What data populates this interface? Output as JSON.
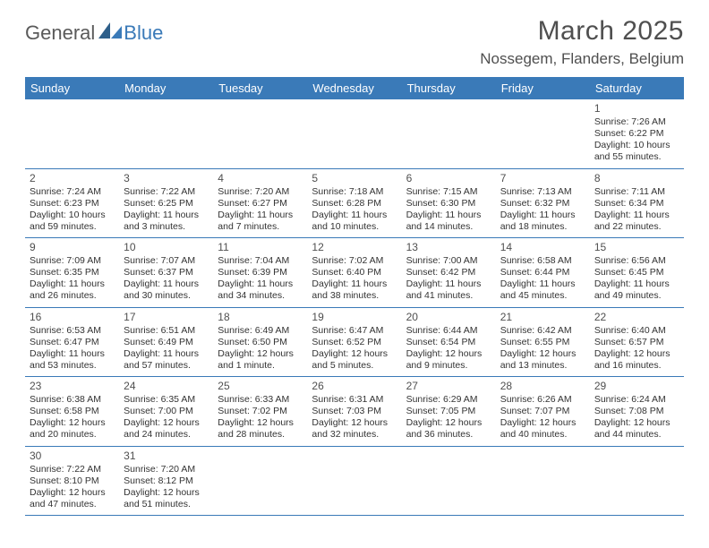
{
  "logo": {
    "general": "General",
    "blue": "Blue"
  },
  "title": "March 2025",
  "location": "Nossegem, Flanders, Belgium",
  "colors": {
    "header_bg": "#3a7ab8",
    "header_text": "#ffffff",
    "text": "#333333",
    "muted": "#4f4f4f",
    "rule": "#3a7ab8"
  },
  "typography": {
    "title_fontsize": 30,
    "location_fontsize": 17,
    "dow_fontsize": 13,
    "daynum_fontsize": 12,
    "body_fontsize": 10.5
  },
  "days_of_week": [
    "Sunday",
    "Monday",
    "Tuesday",
    "Wednesday",
    "Thursday",
    "Friday",
    "Saturday"
  ],
  "weeks": [
    [
      null,
      null,
      null,
      null,
      null,
      null,
      {
        "n": "1",
        "sunrise": "Sunrise: 7:26 AM",
        "sunset": "Sunset: 6:22 PM",
        "daylight": "Daylight: 10 hours and 55 minutes."
      }
    ],
    [
      {
        "n": "2",
        "sunrise": "Sunrise: 7:24 AM",
        "sunset": "Sunset: 6:23 PM",
        "daylight": "Daylight: 10 hours and 59 minutes."
      },
      {
        "n": "3",
        "sunrise": "Sunrise: 7:22 AM",
        "sunset": "Sunset: 6:25 PM",
        "daylight": "Daylight: 11 hours and 3 minutes."
      },
      {
        "n": "4",
        "sunrise": "Sunrise: 7:20 AM",
        "sunset": "Sunset: 6:27 PM",
        "daylight": "Daylight: 11 hours and 7 minutes."
      },
      {
        "n": "5",
        "sunrise": "Sunrise: 7:18 AM",
        "sunset": "Sunset: 6:28 PM",
        "daylight": "Daylight: 11 hours and 10 minutes."
      },
      {
        "n": "6",
        "sunrise": "Sunrise: 7:15 AM",
        "sunset": "Sunset: 6:30 PM",
        "daylight": "Daylight: 11 hours and 14 minutes."
      },
      {
        "n": "7",
        "sunrise": "Sunrise: 7:13 AM",
        "sunset": "Sunset: 6:32 PM",
        "daylight": "Daylight: 11 hours and 18 minutes."
      },
      {
        "n": "8",
        "sunrise": "Sunrise: 7:11 AM",
        "sunset": "Sunset: 6:34 PM",
        "daylight": "Daylight: 11 hours and 22 minutes."
      }
    ],
    [
      {
        "n": "9",
        "sunrise": "Sunrise: 7:09 AM",
        "sunset": "Sunset: 6:35 PM",
        "daylight": "Daylight: 11 hours and 26 minutes."
      },
      {
        "n": "10",
        "sunrise": "Sunrise: 7:07 AM",
        "sunset": "Sunset: 6:37 PM",
        "daylight": "Daylight: 11 hours and 30 minutes."
      },
      {
        "n": "11",
        "sunrise": "Sunrise: 7:04 AM",
        "sunset": "Sunset: 6:39 PM",
        "daylight": "Daylight: 11 hours and 34 minutes."
      },
      {
        "n": "12",
        "sunrise": "Sunrise: 7:02 AM",
        "sunset": "Sunset: 6:40 PM",
        "daylight": "Daylight: 11 hours and 38 minutes."
      },
      {
        "n": "13",
        "sunrise": "Sunrise: 7:00 AM",
        "sunset": "Sunset: 6:42 PM",
        "daylight": "Daylight: 11 hours and 41 minutes."
      },
      {
        "n": "14",
        "sunrise": "Sunrise: 6:58 AM",
        "sunset": "Sunset: 6:44 PM",
        "daylight": "Daylight: 11 hours and 45 minutes."
      },
      {
        "n": "15",
        "sunrise": "Sunrise: 6:56 AM",
        "sunset": "Sunset: 6:45 PM",
        "daylight": "Daylight: 11 hours and 49 minutes."
      }
    ],
    [
      {
        "n": "16",
        "sunrise": "Sunrise: 6:53 AM",
        "sunset": "Sunset: 6:47 PM",
        "daylight": "Daylight: 11 hours and 53 minutes."
      },
      {
        "n": "17",
        "sunrise": "Sunrise: 6:51 AM",
        "sunset": "Sunset: 6:49 PM",
        "daylight": "Daylight: 11 hours and 57 minutes."
      },
      {
        "n": "18",
        "sunrise": "Sunrise: 6:49 AM",
        "sunset": "Sunset: 6:50 PM",
        "daylight": "Daylight: 12 hours and 1 minute."
      },
      {
        "n": "19",
        "sunrise": "Sunrise: 6:47 AM",
        "sunset": "Sunset: 6:52 PM",
        "daylight": "Daylight: 12 hours and 5 minutes."
      },
      {
        "n": "20",
        "sunrise": "Sunrise: 6:44 AM",
        "sunset": "Sunset: 6:54 PM",
        "daylight": "Daylight: 12 hours and 9 minutes."
      },
      {
        "n": "21",
        "sunrise": "Sunrise: 6:42 AM",
        "sunset": "Sunset: 6:55 PM",
        "daylight": "Daylight: 12 hours and 13 minutes."
      },
      {
        "n": "22",
        "sunrise": "Sunrise: 6:40 AM",
        "sunset": "Sunset: 6:57 PM",
        "daylight": "Daylight: 12 hours and 16 minutes."
      }
    ],
    [
      {
        "n": "23",
        "sunrise": "Sunrise: 6:38 AM",
        "sunset": "Sunset: 6:58 PM",
        "daylight": "Daylight: 12 hours and 20 minutes."
      },
      {
        "n": "24",
        "sunrise": "Sunrise: 6:35 AM",
        "sunset": "Sunset: 7:00 PM",
        "daylight": "Daylight: 12 hours and 24 minutes."
      },
      {
        "n": "25",
        "sunrise": "Sunrise: 6:33 AM",
        "sunset": "Sunset: 7:02 PM",
        "daylight": "Daylight: 12 hours and 28 minutes."
      },
      {
        "n": "26",
        "sunrise": "Sunrise: 6:31 AM",
        "sunset": "Sunset: 7:03 PM",
        "daylight": "Daylight: 12 hours and 32 minutes."
      },
      {
        "n": "27",
        "sunrise": "Sunrise: 6:29 AM",
        "sunset": "Sunset: 7:05 PM",
        "daylight": "Daylight: 12 hours and 36 minutes."
      },
      {
        "n": "28",
        "sunrise": "Sunrise: 6:26 AM",
        "sunset": "Sunset: 7:07 PM",
        "daylight": "Daylight: 12 hours and 40 minutes."
      },
      {
        "n": "29",
        "sunrise": "Sunrise: 6:24 AM",
        "sunset": "Sunset: 7:08 PM",
        "daylight": "Daylight: 12 hours and 44 minutes."
      }
    ],
    [
      {
        "n": "30",
        "sunrise": "Sunrise: 7:22 AM",
        "sunset": "Sunset: 8:10 PM",
        "daylight": "Daylight: 12 hours and 47 minutes."
      },
      {
        "n": "31",
        "sunrise": "Sunrise: 7:20 AM",
        "sunset": "Sunset: 8:12 PM",
        "daylight": "Daylight: 12 hours and 51 minutes."
      },
      null,
      null,
      null,
      null,
      null
    ]
  ]
}
